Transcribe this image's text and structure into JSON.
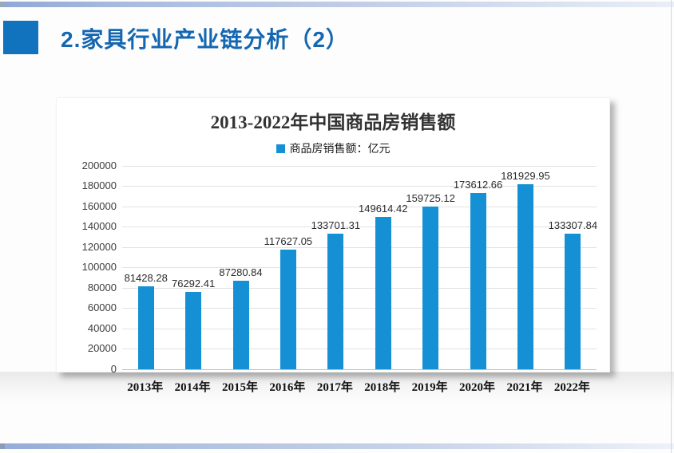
{
  "slide": {
    "page_title": "2.家具行业产业链分析（2）",
    "accent_square_color": "#1173BE",
    "title_text_color": "#1467B1"
  },
  "chart_data": {
    "type": "bar",
    "title": "2013-2022年中国商品房销售额",
    "legend": "商品房销售额：亿元",
    "legend_position": "top",
    "bar_color": "#1590D5",
    "grid": true,
    "categories": [
      "2013年",
      "2014年",
      "2015年",
      "2016年",
      "2017年",
      "2018年",
      "2019年",
      "2020年",
      "2021年",
      "2022年"
    ],
    "values": [
      81428.28,
      76292.41,
      87280.84,
      117627.05,
      133701.31,
      149614.42,
      159725.12,
      173612.66,
      181929.95,
      133307.84
    ],
    "value_labels": [
      "81428.28",
      "76292.41",
      "87280.84",
      "117627.05",
      "133701.31",
      "149614.42",
      "159725.12",
      "173612.66",
      "181929.95",
      "133307.84"
    ],
    "ylabel": "",
    "xlabel": "",
    "ylim": [
      0,
      200000
    ],
    "ytick_step": 20000,
    "yticks": [
      "0",
      "20000",
      "40000",
      "60000",
      "80000",
      "100000",
      "120000",
      "140000",
      "160000",
      "180000",
      "200000"
    ]
  }
}
